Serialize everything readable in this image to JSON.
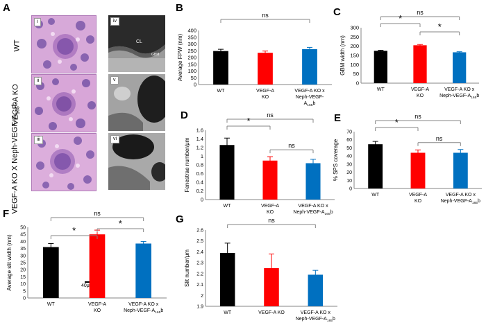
{
  "panel_letters": {
    "A": "A",
    "B": "B",
    "C": "C",
    "D": "D",
    "E": "E",
    "F": "F",
    "G": "G"
  },
  "panel_a": {
    "row_labels": [
      "WT",
      "VEGF-A KO",
      "VEGF-A KO X Neph-VEGF-A",
      "165",
      "b"
    ],
    "roman": [
      "i",
      "ii",
      "iii",
      "iv",
      "v",
      "vi"
    ],
    "em_labels": {
      "CL": "CL",
      "GBM": "GBM"
    },
    "scale_bar": "40μm"
  },
  "colors": {
    "WT": "#000000",
    "KO": "#ff0000",
    "KO_neph": "#0070c0",
    "line": "#868686"
  },
  "chart_data": [
    {
      "id": "B",
      "type": "bar",
      "categories": [
        [
          "WT"
        ],
        [
          "VEGF-A",
          "KO"
        ],
        [
          "VEGF-A KO x",
          "Neph-VEGF-",
          "A",
          "165",
          "b"
        ]
      ],
      "values": [
        248,
        235,
        262
      ],
      "errors": [
        13,
        13,
        13
      ],
      "ylabel": "Average FPW (nm)",
      "ylim": [
        0,
        400
      ],
      "yticks": [
        "0",
        "50",
        "100",
        "150",
        "200",
        "250",
        "300",
        "350",
        "400"
      ],
      "sig": [
        {
          "from": 0,
          "to": 2,
          "text": "ns"
        }
      ]
    },
    {
      "id": "C",
      "type": "bar",
      "categories": [
        [
          "WT"
        ],
        [
          "VEGF-A",
          "KO"
        ],
        [
          "VEGF-A KO x",
          "Neph-VEGF-A",
          "165",
          "b"
        ]
      ],
      "values": [
        175,
        205,
        167
      ],
      "errors": [
        3,
        4,
        3
      ],
      "ylabel": "GBM width (nm)",
      "ylim": [
        0,
        300
      ],
      "yticks": [
        "0",
        "50",
        "100",
        "150",
        "200",
        "250",
        "300"
      ],
      "sig": [
        {
          "from": 0,
          "to": 2,
          "text": "ns"
        },
        {
          "from": 0,
          "to": 1,
          "text": "*"
        },
        {
          "from": 1,
          "to": 2,
          "text": "*"
        }
      ]
    },
    {
      "id": "D",
      "type": "bar",
      "categories": [
        [
          "WT"
        ],
        [
          "VEGF-A",
          "KO"
        ],
        [
          "VEGF-A KO x",
          "Neph-VEGF-A",
          "165",
          "b"
        ]
      ],
      "values": [
        1.26,
        0.9,
        0.84
      ],
      "errors": [
        0.16,
        0.09,
        0.09
      ],
      "ylabel": "Fenestrae number/μm",
      "ylim": [
        0,
        1.6
      ],
      "yticks": [
        "0",
        "0.2",
        "0.4",
        "0.6",
        "0.8",
        "1",
        "1.2",
        "1.4",
        "1.6"
      ],
      "sig": [
        {
          "from": 0,
          "to": 2,
          "text": "ns"
        },
        {
          "from": 0,
          "to": 1,
          "text": "*"
        },
        {
          "from": 1,
          "to": 2,
          "text": "ns"
        }
      ]
    },
    {
      "id": "E",
      "type": "bar",
      "categories": [
        [
          "WT"
        ],
        [
          "VEGF-A",
          "KO"
        ],
        [
          "VEGF-A KO x",
          "Neph-VEGF-A",
          "165",
          "b"
        ]
      ],
      "values": [
        54.5,
        44,
        44
      ],
      "errors": [
        3.5,
        3.5,
        4
      ],
      "ylabel": "% SPS coverage",
      "ylim": [
        0,
        70
      ],
      "yticks": [
        "0",
        "10",
        "20",
        "30",
        "40",
        "50",
        "60",
        "70"
      ],
      "sig": [
        {
          "from": 0,
          "to": 2,
          "text": "ns"
        },
        {
          "from": 0,
          "to": 1,
          "text": "*"
        },
        {
          "from": 1,
          "to": 2,
          "text": "ns"
        }
      ]
    },
    {
      "id": "F",
      "type": "bar",
      "categories": [
        [
          "WT"
        ],
        [
          "VEGF-A",
          "KO"
        ],
        [
          "VEGF-A KO x",
          "Neph-VEGF-A",
          "165",
          "b"
        ]
      ],
      "values": [
        36,
        45,
        38.5
      ],
      "errors": [
        2.5,
        3,
        1.5
      ],
      "ylabel": "Average slit width (nm)",
      "ylim": [
        0,
        50
      ],
      "yticks": [
        "0",
        "5",
        "10",
        "15",
        "20",
        "25",
        "30",
        "35",
        "40",
        "45",
        "50"
      ],
      "sig": [
        {
          "from": 0,
          "to": 2,
          "text": "ns"
        },
        {
          "from": 0,
          "to": 1,
          "text": "*"
        },
        {
          "from": 1,
          "to": 2,
          "text": "*"
        }
      ]
    },
    {
      "id": "G",
      "type": "bar",
      "categories": [
        [
          "WT"
        ],
        [
          "VEGF-A KO"
        ],
        [
          "VEGF-A KO x",
          "Neph-VEGF-A",
          "165",
          "b"
        ]
      ],
      "values": [
        2.39,
        2.25,
        2.19
      ],
      "errors": [
        0.09,
        0.13,
        0.04
      ],
      "ylabel": "Slit number/μm",
      "ylim": [
        1.9,
        2.6
      ],
      "yticks": [
        "1.9",
        "2",
        "2.1",
        "2.2",
        "2.3",
        "2.4",
        "2.5",
        "2.6"
      ],
      "sig": [
        {
          "from": 0,
          "to": 2,
          "text": "ns"
        }
      ]
    }
  ]
}
